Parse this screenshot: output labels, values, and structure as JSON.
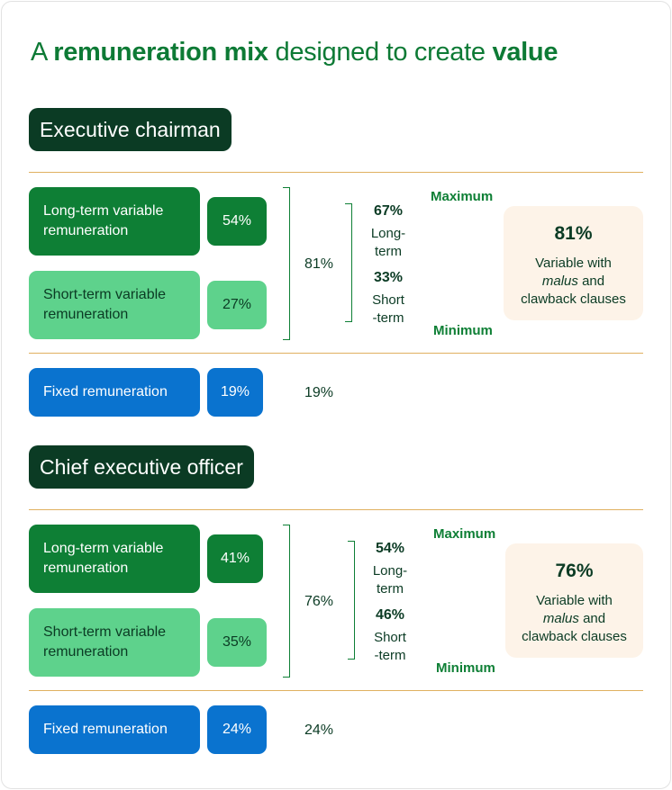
{
  "title": {
    "pre": "A ",
    "bold1": "remuneration mix",
    "mid": " designed to create ",
    "bold2": "value"
  },
  "sections": [
    {
      "role": "Executive chairman",
      "long_term": {
        "line1": "Long-term variable",
        "line2": "remuneration",
        "pct": "54%"
      },
      "short_term": {
        "line1": "Short-term variable",
        "line2": "remuneration",
        "pct": "27%"
      },
      "variable_sum": "81%",
      "split": {
        "long_pct": "67%",
        "long_l1": "Long-",
        "long_l2": "term",
        "short_pct": "33%",
        "short_l1": "Short",
        "short_l2": "-term"
      },
      "maximum": "Maximum",
      "minimum": "Minimum",
      "variable_box": {
        "pct": "81%",
        "line1": "Variable with",
        "malus": "malus",
        "and": " and",
        "line3": "clawback clauses"
      },
      "fixed": {
        "label": "Fixed remuneration",
        "pct": "19%",
        "sum": "19%"
      }
    },
    {
      "role": "Chief executive officer",
      "long_term": {
        "line1": "Long-term variable",
        "line2": "remuneration",
        "pct": "41%"
      },
      "short_term": {
        "line1": "Short-term variable",
        "line2": "remuneration",
        "pct": "35%"
      },
      "variable_sum": "76%",
      "split": {
        "long_pct": "54%",
        "long_l1": "Long-",
        "long_l2": "term",
        "short_pct": "46%",
        "short_l1": "Short",
        "short_l2": "-term"
      },
      "maximum": "Maximum",
      "minimum": "Minimum",
      "variable_box": {
        "pct": "76%",
        "line1": "Variable with",
        "malus": "malus",
        "and": " and",
        "line3": "clawback clauses"
      },
      "fixed": {
        "label": "Fixed remuneration",
        "pct": "24%",
        "sum": "24%"
      }
    }
  ],
  "colors": {
    "dark_green": "#0b3b24",
    "long_term": "#0e7f35",
    "short_term": "#5ed28c",
    "fixed": "#0a73cf",
    "divider": "#e0b060",
    "variable_bg": "#fdf3e8"
  }
}
